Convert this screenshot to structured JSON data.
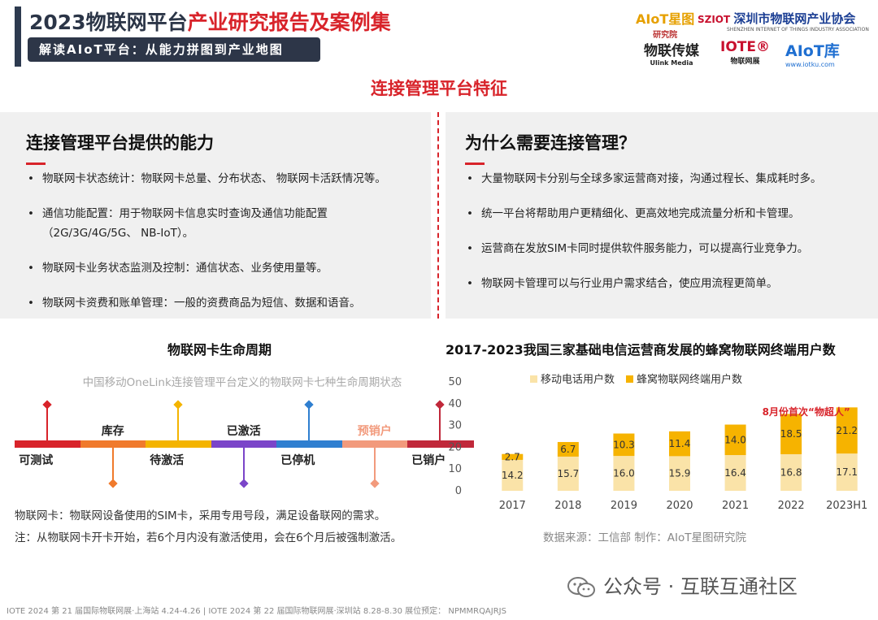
{
  "header": {
    "title_part1": "2023物联网平台",
    "title_part2": "产业研究报告及案例集",
    "subtitle": "解读AIoT平台：从能力拼图到产业地图"
  },
  "logos": {
    "aiot": "AIoT星图",
    "aiot_sub": "研究院",
    "sziot_mark": "SZIOT",
    "sziot_name": "深圳市物联网产业协会",
    "sziot_en": "SHENZHEN INTERNET OF THINGS INDUSTRY ASSOCIATION",
    "ulink": "物联传媒",
    "ulink_sub": "Ulink Media",
    "iote": "IOTE®",
    "iote_sub": "物联网展",
    "iotku": "AIoT库",
    "iotku_sub": "www.iotku.com"
  },
  "section_title": "连接管理平台特征",
  "left_panel": {
    "heading": "连接管理平台提供的能力",
    "items": [
      "物联网卡状态统计：物联网卡总量、分布状态、 物联网卡活跃情况等。",
      "通信功能配置：用于物联网卡信息实时查询及通信功能配置（2G/3G/4G/5G、 NB-IoT）。",
      "物联网卡业务状态监测及控制：通信状态、业务使用量等。",
      "物联网卡资费和账单管理：一般的资费商品为短信、数据和语音。"
    ]
  },
  "right_panel": {
    "heading": "为什么需要连接管理？",
    "items": [
      "大量物联网卡分别与全球多家运营商对接，沟通过程长、集成耗时多。",
      "统一平台将帮助用户更精细化、更高效地完成流量分析和卡管理。",
      "运营商在发放SIM卡同时提供软件服务能力，可以提高行业竞争力。",
      "物联网卡管理可以与行业用户需求结合，使应用流程更简单。"
    ]
  },
  "lifecycle": {
    "title": "物联网卡生命周期",
    "subtitle": "中国移动OneLink连接管理平台定义的物联网卡七种生命周期状态",
    "states": [
      {
        "label": "可测试",
        "color": "#d8232a"
      },
      {
        "label": "库存",
        "color": "#f07a2c"
      },
      {
        "label": "待激活",
        "color": "#f4b400"
      },
      {
        "label": "已激活",
        "color": "#7b45c9"
      },
      {
        "label": "已停机",
        "color": "#2f7fd0"
      },
      {
        "label": "预销户",
        "color": "#f29a7c"
      },
      {
        "label": "已销户",
        "color": "#c0283a"
      }
    ],
    "note1": "物联网卡：物联网设备使用的SIM卡，采用专用号段，满足设备联网的需求。",
    "note2": "注：从物联网卡开卡开始，若6个月内没有激活使用，会在6个月后被强制激活。"
  },
  "chart_data": {
    "type": "bar",
    "title": "2017-2023我国三家基础电信运营商发展的蜂窝物联网终端用户数",
    "categories": [
      "2017",
      "2018",
      "2019",
      "2020",
      "2021",
      "2022",
      "2023H1"
    ],
    "series": [
      {
        "name": "移动电话用户数",
        "values": [
          14.2,
          15.7,
          16.0,
          15.9,
          16.4,
          16.8,
          17.1
        ],
        "color": "#fae3a8"
      },
      {
        "name": "蜂窝物联网终端用户数",
        "values": [
          2.7,
          6.7,
          10.3,
          11.4,
          14.0,
          18.5,
          21.2
        ],
        "color": "#f6b300"
      }
    ],
    "stacked": true,
    "yticks": [
      "0",
      "10",
      "20",
      "30",
      "40",
      "50"
    ],
    "ylim": [
      0,
      50
    ],
    "legend_position": "top",
    "annotation": "8月份首次“物超人”",
    "annotation_color": "#d8232a"
  },
  "chart_source": "数据来源：工信部   制作：AIoT星图研究院",
  "watermark": "公众号 · 互联互通社区",
  "footer": "IOTE 2024 第 21 届国际物联网展·上海站 4.24-4.26 | IOTE 2024 第 22 届国际物联网展·深圳站 8.28-8.30  展位预定：         NPMMRQAJRJS"
}
